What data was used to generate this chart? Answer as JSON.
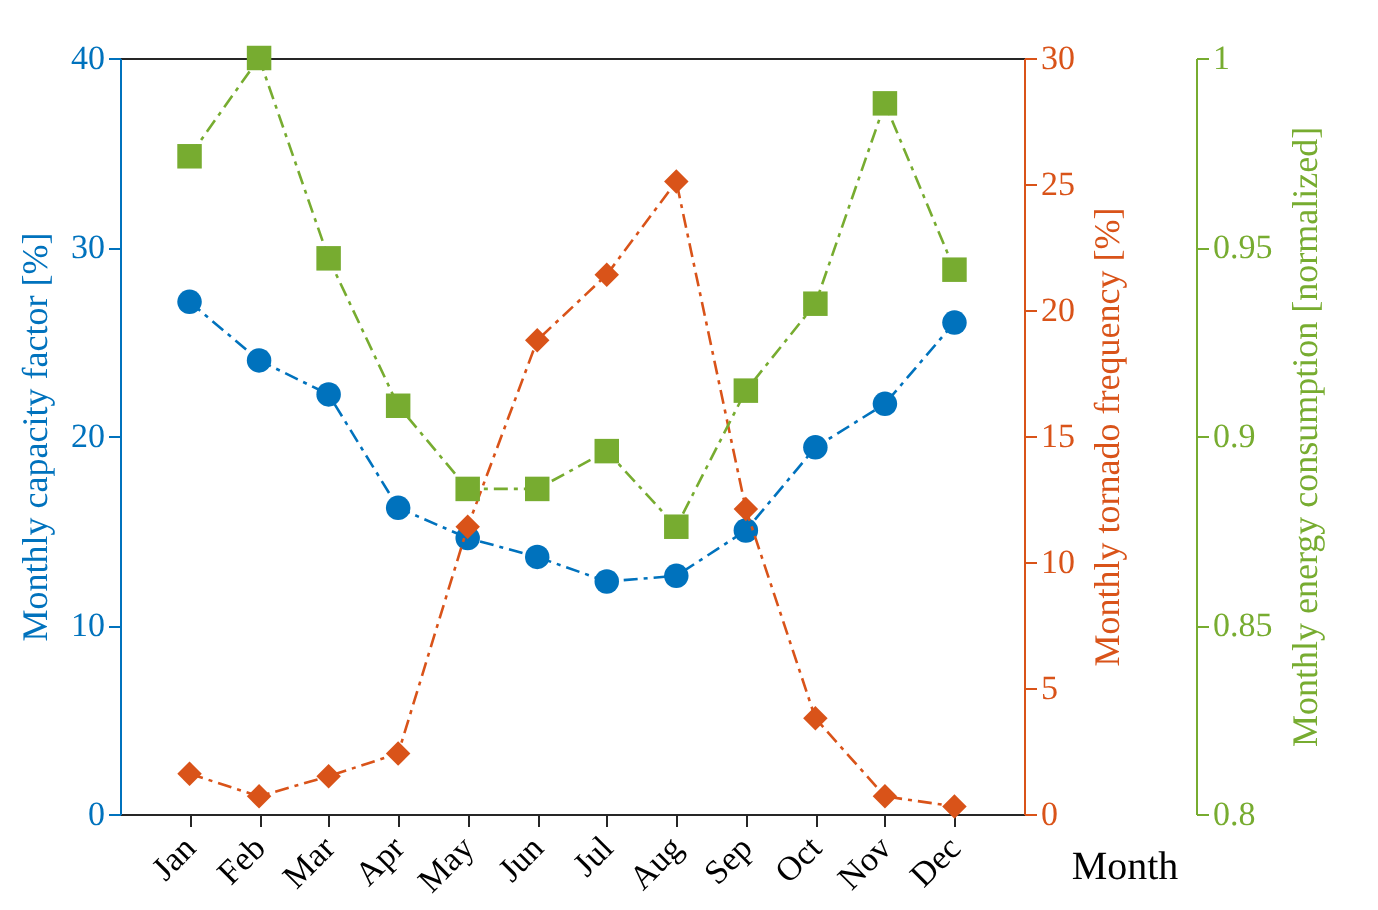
{
  "chart_data": {
    "type": "line",
    "xlabel": "Month",
    "ylabel": "Monthly capacity factor [%]",
    "y2label": "Monthly tornado frequency [%]",
    "y3label": "Monthly energy consumption [normalized]",
    "categories": [
      "Jan",
      "Feb",
      "Mar",
      "Apr",
      "May",
      "Jun",
      "Jul",
      "Aug",
      "Sep",
      "Oct",
      "Nov",
      "Dec"
    ],
    "series": [
      {
        "color": "#0072bd",
        "marker": "circle",
        "axis": "y",
        "values": [
          27.1,
          24.0,
          22.2,
          16.2,
          14.6,
          13.6,
          12.3,
          12.6,
          15.0,
          19.4,
          21.7,
          26.0
        ]
      },
      {
        "color": "#d95319",
        "marker": "diamond",
        "axis": "y2",
        "values": [
          1.6,
          0.7,
          1.5,
          2.4,
          11.4,
          18.8,
          21.4,
          25.1,
          12.1,
          3.8,
          0.7,
          0.3
        ]
      },
      {
        "color": "#77ac30",
        "marker": "square",
        "axis": "y3",
        "values": [
          0.974,
          1.0,
          0.947,
          0.908,
          0.886,
          0.886,
          0.896,
          0.876,
          0.912,
          0.935,
          0.988,
          0.944
        ]
      }
    ],
    "ylim": [
      0,
      40
    ],
    "yticks": [
      0,
      10,
      20,
      30,
      40
    ],
    "y2lim": [
      0,
      30
    ],
    "y2ticks": [
      0,
      5,
      10,
      15,
      20,
      25,
      30
    ],
    "y3lim": [
      0.8,
      1
    ],
    "y3ticks": [
      0.8,
      0.85,
      0.9,
      0.95,
      1
    ],
    "line_style": "dashed",
    "grid": false
  }
}
